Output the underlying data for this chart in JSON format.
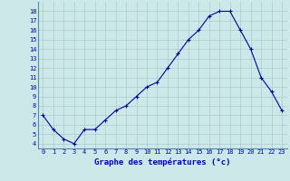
{
  "hours": [
    0,
    1,
    2,
    3,
    4,
    5,
    6,
    7,
    8,
    9,
    10,
    11,
    12,
    13,
    14,
    15,
    16,
    17,
    18,
    19,
    20,
    21,
    22,
    23
  ],
  "temps": [
    7.0,
    5.5,
    4.5,
    4.0,
    5.5,
    5.5,
    6.5,
    7.5,
    8.0,
    9.0,
    10.0,
    10.5,
    12.0,
    13.5,
    15.0,
    16.0,
    17.5,
    18.0,
    18.0,
    16.0,
    14.0,
    11.0,
    9.5,
    7.5
  ],
  "xlabel": "Graphe des températures (°c)",
  "xlim": [
    -0.5,
    23.5
  ],
  "ylim": [
    3.5,
    19.0
  ],
  "yticks": [
    4,
    5,
    6,
    7,
    8,
    9,
    10,
    11,
    12,
    13,
    14,
    15,
    16,
    17,
    18
  ],
  "xticks": [
    0,
    1,
    2,
    3,
    4,
    5,
    6,
    7,
    8,
    9,
    10,
    11,
    12,
    13,
    14,
    15,
    16,
    17,
    18,
    19,
    20,
    21,
    22,
    23
  ],
  "line_color": "#0000aa",
  "marker": "+",
  "bg_color": "#cce8e8",
  "grid_color": "#aacccc",
  "label_color": "#0000cc",
  "xlabel_color": "#0000cc"
}
